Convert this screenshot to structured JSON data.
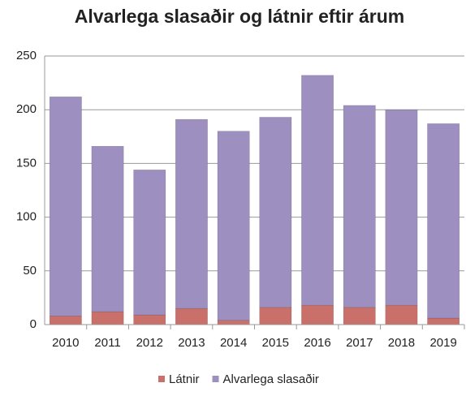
{
  "chart_data": {
    "type": "stacked_bar",
    "title": "Alvarlega slasaðir og látnir eftir árum",
    "categories": [
      "2010",
      "2011",
      "2012",
      "2013",
      "2014",
      "2015",
      "2016",
      "2017",
      "2018",
      "2019"
    ],
    "series": [
      {
        "name": "Látnir",
        "color": "#c9706a",
        "values": [
          8,
          12,
          9,
          15,
          4,
          16,
          18,
          16,
          18,
          6
        ]
      },
      {
        "name": "Alvarlega slasaðir",
        "color": "#9d8fc0",
        "values": [
          204,
          154,
          135,
          176,
          176,
          177,
          214,
          188,
          182,
          181
        ]
      }
    ],
    "ylim": [
      0,
      250
    ],
    "yticks": [
      0,
      50,
      100,
      150,
      200,
      250
    ],
    "grid": true,
    "legend": "bottom"
  }
}
